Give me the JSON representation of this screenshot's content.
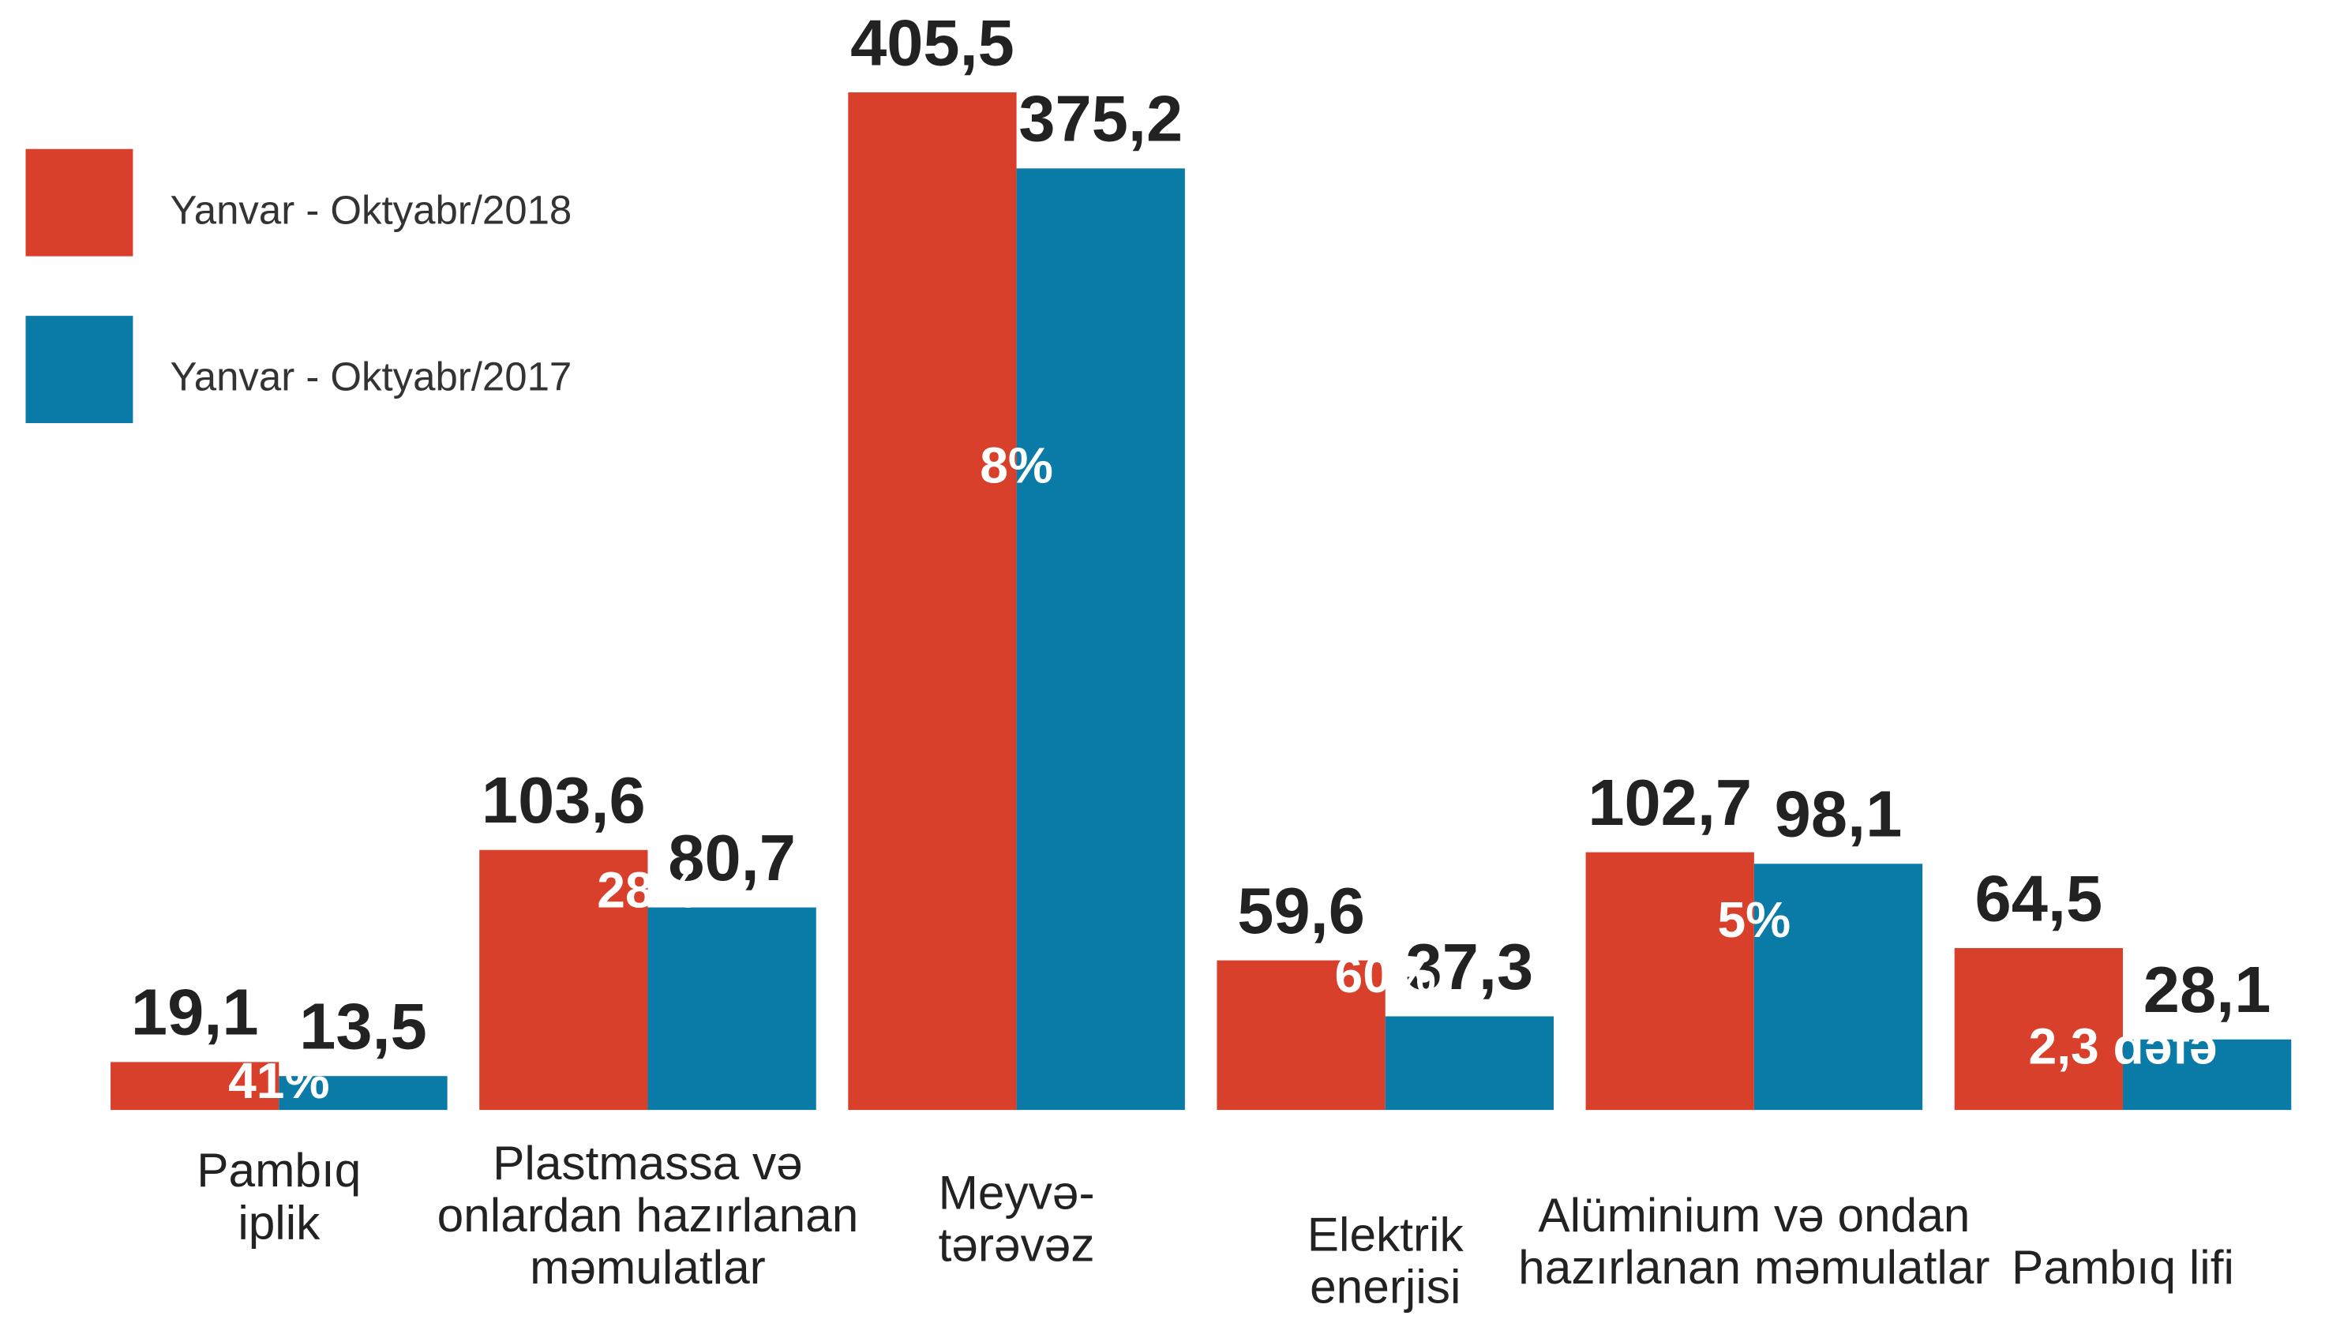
{
  "chart_data": {
    "type": "bar",
    "categories": [
      [
        "Pambıq",
        "iplik"
      ],
      [
        "Plastmassa və",
        "onlardan hazırlanan",
        "məmulatlar"
      ],
      [
        "Meyvə-",
        "tərəvəz"
      ],
      [
        "Elektrik",
        "enerjisi"
      ],
      [
        "Alüminium və ondan",
        "hazırlanan məmulatlar"
      ],
      [
        "Pambıq lifi"
      ]
    ],
    "series": [
      {
        "name": "Yanvar - Oktyabr/2018",
        "color": "#d9402b",
        "values": [
          19.1,
          103.6,
          405.5,
          59.6,
          102.7,
          64.5
        ],
        "value_labels": [
          "19,1",
          "103,6",
          "405,5",
          "59,6",
          "102,7",
          "64,5"
        ]
      },
      {
        "name": "Yanvar - Oktyabr/2017",
        "color": "#0a7aa6",
        "values": [
          13.5,
          80.7,
          375.2,
          37.3,
          98.1,
          28.1
        ],
        "value_labels": [
          "13,5",
          "80,7",
          "375,2",
          "37,3",
          "98,1",
          "28,1"
        ]
      }
    ],
    "annotations": [
      "41%",
      "28%",
      "8%",
      "60%",
      "5%",
      "2,3 dəfə"
    ]
  }
}
